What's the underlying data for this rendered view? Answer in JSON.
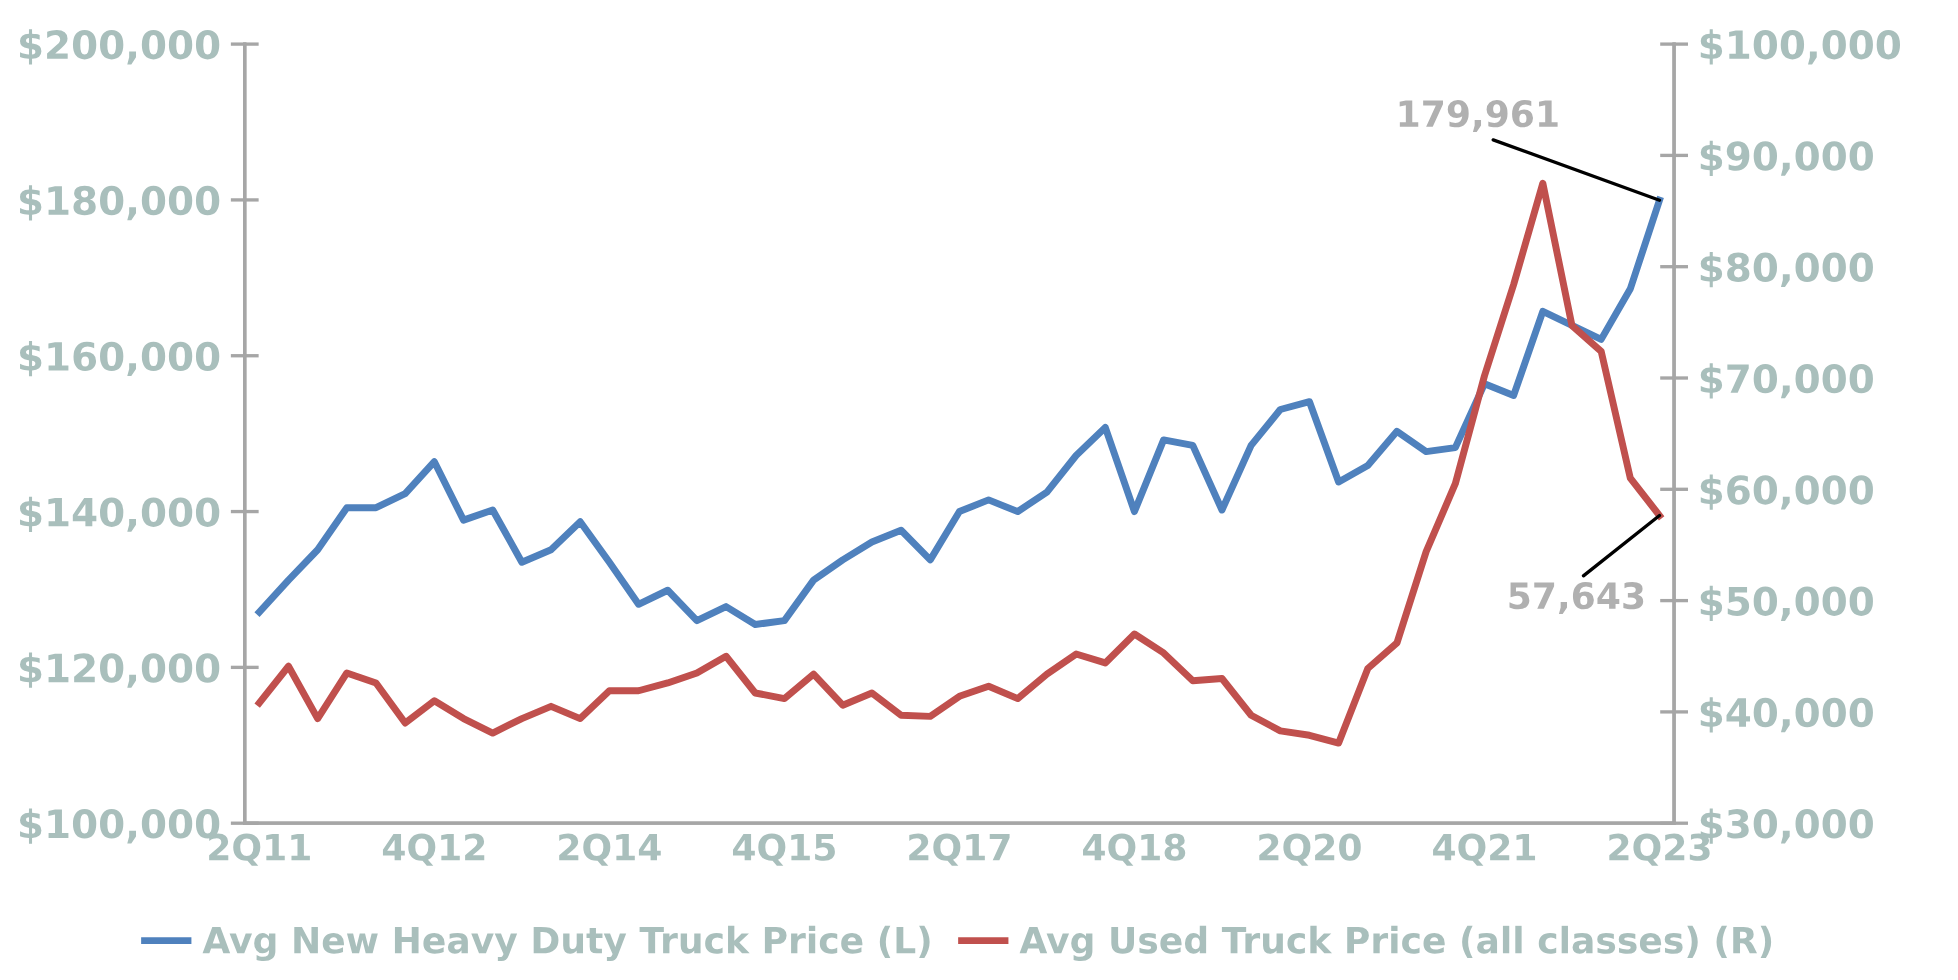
{
  "chart_data": {
    "type": "line",
    "categories": [
      "2Q11",
      null,
      null,
      null,
      null,
      null,
      "4Q12",
      null,
      null,
      null,
      null,
      null,
      "2Q14",
      null,
      null,
      null,
      null,
      null,
      "4Q15",
      null,
      null,
      null,
      null,
      null,
      "2Q17",
      null,
      null,
      null,
      null,
      null,
      "4Q18",
      null,
      null,
      null,
      null,
      null,
      "2Q20",
      null,
      null,
      null,
      null,
      null,
      "4Q21",
      null,
      null,
      null,
      null,
      null,
      "2Q23"
    ],
    "series": [
      {
        "name": "Avg New Heavy Duty Truck Price (L)",
        "color": "#4f81bd",
        "values": [
          127100,
          131200,
          135100,
          140500,
          140500,
          142300,
          146400,
          138900,
          140200,
          133500,
          135100,
          138700,
          133500,
          128100,
          129900,
          126000,
          127800,
          125500,
          126000,
          131200,
          133800,
          136100,
          137600,
          133800,
          140000,
          141500,
          140000,
          142500,
          147200,
          150800,
          140000,
          149200,
          148500,
          140200,
          148500,
          153100,
          154100,
          143800,
          145900,
          150300,
          147700,
          148200,
          156400,
          154900,
          165700,
          163900,
          162100,
          168600,
          179961
        ],
        "value_labels": [
          null,
          null,
          null,
          null,
          null,
          null,
          null,
          null,
          null,
          null,
          null,
          null,
          null,
          null,
          null,
          null,
          null,
          null,
          null,
          null,
          null,
          null,
          null,
          null,
          null,
          null,
          null,
          null,
          null,
          null,
          null,
          null,
          null,
          null,
          null,
          null,
          null,
          null,
          null,
          null,
          null,
          null,
          null,
          null,
          null,
          null,
          null,
          null,
          "179,961"
        ]
      },
      {
        "name": "Avg Used Truck Price (all classes) (R)",
        "color": "#c0504d",
        "axis": "y2",
        "values": [
          40800,
          44100,
          39400,
          43500,
          42600,
          39000,
          41000,
          39400,
          38100,
          39400,
          40500,
          39400,
          41900,
          41900,
          42600,
          43500,
          45000,
          41700,
          41200,
          43400,
          40600,
          41700,
          39700,
          39600,
          41400,
          42300,
          41200,
          43400,
          45200,
          44400,
          47000,
          45300,
          42800,
          43000,
          39700,
          38300,
          37900,
          37200,
          43900,
          46200,
          54400,
          60500,
          70200,
          78400,
          87500,
          74700,
          72400,
          61000,
          57643
        ],
        "value_labels": [
          null,
          null,
          null,
          null,
          null,
          null,
          null,
          null,
          null,
          null,
          null,
          null,
          null,
          null,
          null,
          null,
          null,
          null,
          null,
          null,
          null,
          null,
          null,
          null,
          null,
          null,
          null,
          null,
          null,
          null,
          null,
          null,
          null,
          null,
          null,
          null,
          null,
          null,
          null,
          null,
          null,
          null,
          null,
          null,
          null,
          null,
          null,
          null,
          "57,643"
        ]
      }
    ],
    "ylim": [
      100000,
      200000
    ],
    "yticks": [
      {
        "value": 100000,
        "label": "$100,000"
      },
      {
        "value": 120000,
        "label": "$120,000"
      },
      {
        "value": 140000,
        "label": "$140,000"
      },
      {
        "value": 160000,
        "label": "$160,000"
      },
      {
        "value": 180000,
        "label": "$180,000"
      },
      {
        "value": 200000,
        "label": "$200,000"
      }
    ],
    "y2lim": [
      30000,
      100000
    ],
    "y2ticks": [
      {
        "value": 30000,
        "label": "$30,000"
      },
      {
        "value": 40000,
        "label": "$40,000"
      },
      {
        "value": 50000,
        "label": "$50,000"
      },
      {
        "value": 60000,
        "label": "$60,000"
      },
      {
        "value": 70000,
        "label": "$70,000"
      },
      {
        "value": 80000,
        "label": "$80,000"
      },
      {
        "value": 90000,
        "label": "$90,000"
      },
      {
        "value": 100000,
        "label": "$100,000"
      }
    ],
    "grid": false,
    "legend": "bottom",
    "marker": "none",
    "line_style": "solid"
  }
}
